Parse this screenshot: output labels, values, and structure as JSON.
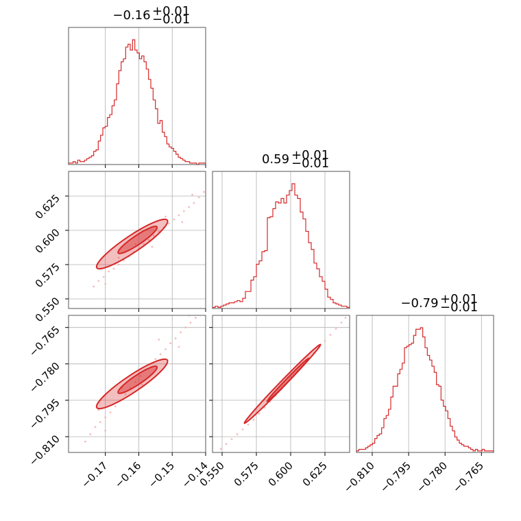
{
  "chart_data": {
    "type": "corner",
    "color": "#d62728",
    "light_color": "#f4b6b6",
    "grid": true,
    "parameters": [
      {
        "median": "−0.16",
        "plus": "+0.01",
        "minus": "−0.01",
        "range": [
          -0.181,
          -0.14
        ],
        "ticks": [
          -0.17,
          -0.16,
          -0.15,
          -0.14
        ],
        "tick_labels": [
          "−0.17",
          "−0.16",
          "−0.15",
          "−0.14"
        ]
      },
      {
        "median": "0.59",
        "plus": "+0.01",
        "minus": "−0.01",
        "range": [
          0.543,
          0.643
        ],
        "ticks": [
          0.55,
          0.575,
          0.6,
          0.625
        ],
        "tick_labels": [
          "0.550",
          "0.575",
          "0.600",
          "0.625"
        ]
      },
      {
        "median": "−0.79",
        "plus": "+0.01",
        "minus": "−0.01",
        "range": [
          -0.8165,
          -0.76
        ],
        "ticks": [
          -0.81,
          -0.795,
          -0.78,
          -0.765
        ],
        "tick_labels": [
          "−0.810",
          "−0.795",
          "−0.780",
          "−0.765"
        ]
      }
    ],
    "histograms": [
      {
        "param": 0,
        "edges": [
          -0.181,
          -0.14
        ],
        "counts": [
          1,
          1,
          2,
          1,
          3,
          2,
          2,
          3,
          4,
          5,
          6,
          9,
          10,
          16,
          20,
          25,
          26,
          32,
          34,
          40,
          44,
          55,
          64,
          70,
          72,
          80,
          82,
          78,
          85,
          78,
          76,
          72,
          74,
          70,
          65,
          58,
          52,
          44,
          38,
          28,
          30,
          22,
          19,
          14,
          12,
          11,
          9,
          7,
          5,
          4,
          3,
          2,
          2,
          1,
          1,
          1,
          0,
          1,
          1,
          1
        ]
      },
      {
        "param": 1,
        "edges": [
          0.543,
          0.643
        ],
        "counts": [
          1,
          2,
          1,
          2,
          3,
          4,
          5,
          5,
          6,
          7,
          6,
          9,
          15,
          15,
          25,
          28,
          39,
          42,
          50,
          51,
          80,
          81,
          88,
          94,
          93,
          97,
          93,
          100,
          104,
          110,
          100,
          97,
          85,
          79,
          68,
          58,
          52,
          40,
          35,
          28,
          24,
          17,
          10,
          8,
          5,
          4,
          3,
          2,
          2,
          1
        ]
      },
      {
        "param": 2,
        "edges": [
          -0.8165,
          -0.76
        ],
        "counts": [
          1,
          2,
          2,
          2,
          3,
          4,
          5,
          6,
          9,
          11,
          12,
          16,
          22,
          24,
          28,
          36,
          43,
          43,
          51,
          54,
          58,
          68,
          69,
          70,
          71,
          76,
          80,
          80,
          81,
          75,
          68,
          63,
          60,
          56,
          52,
          44,
          43,
          34,
          30,
          27,
          22,
          17,
          14,
          10,
          8,
          6,
          5,
          4,
          4,
          3,
          2,
          1,
          2,
          1,
          1,
          2,
          1,
          1,
          1,
          1
        ]
      }
    ],
    "pairs": [
      {
        "x_param": 0,
        "y_param": 1,
        "correlation": 0.97,
        "points": [
          [
            -0.1735,
            0.559
          ],
          [
            -0.172,
            0.563
          ],
          [
            -0.1705,
            0.566
          ],
          [
            -0.169,
            0.57
          ],
          [
            -0.1675,
            0.572
          ],
          [
            -0.166,
            0.575
          ],
          [
            -0.1645,
            0.578
          ],
          [
            -0.163,
            0.581
          ],
          [
            -0.1615,
            0.584
          ],
          [
            -0.16,
            0.587
          ],
          [
            -0.1585,
            0.59
          ],
          [
            -0.157,
            0.593
          ],
          [
            -0.1555,
            0.596
          ],
          [
            -0.154,
            0.599
          ],
          [
            -0.1525,
            0.602
          ],
          [
            -0.151,
            0.605
          ],
          [
            -0.1495,
            0.608
          ],
          [
            -0.148,
            0.611
          ],
          [
            -0.1465,
            0.614
          ],
          [
            -0.145,
            0.617
          ],
          [
            -0.1435,
            0.62
          ],
          [
            -0.142,
            0.624
          ],
          [
            -0.1405,
            0.628
          ],
          [
            -0.17,
            0.561
          ],
          [
            -0.166,
            0.58
          ],
          [
            -0.161,
            0.59
          ],
          [
            -0.156,
            0.588
          ],
          [
            -0.152,
            0.61
          ],
          [
            -0.147,
            0.606
          ],
          [
            -0.144,
            0.626
          ]
        ]
      },
      {
        "x_param": 0,
        "y_param": 2,
        "correlation": 0.96,
        "points": [
          [
            -0.176,
            -0.812
          ],
          [
            -0.1745,
            -0.809
          ],
          [
            -0.173,
            -0.806
          ],
          [
            -0.1715,
            -0.804
          ],
          [
            -0.17,
            -0.802
          ],
          [
            -0.1685,
            -0.8
          ],
          [
            -0.167,
            -0.7975
          ],
          [
            -0.1655,
            -0.795
          ],
          [
            -0.164,
            -0.7925
          ],
          [
            -0.1625,
            -0.79
          ],
          [
            -0.161,
            -0.7875
          ],
          [
            -0.1595,
            -0.785
          ],
          [
            -0.158,
            -0.7825
          ],
          [
            -0.1565,
            -0.78
          ],
          [
            -0.155,
            -0.778
          ],
          [
            -0.1535,
            -0.776
          ],
          [
            -0.152,
            -0.774
          ],
          [
            -0.1505,
            -0.7715
          ],
          [
            -0.149,
            -0.7695
          ],
          [
            -0.1475,
            -0.767
          ],
          [
            -0.146,
            -0.765
          ],
          [
            -0.1445,
            -0.763
          ],
          [
            -0.143,
            -0.761
          ],
          [
            -0.17,
            -0.8075
          ],
          [
            -0.165,
            -0.79
          ],
          [
            -0.159,
            -0.7885
          ],
          [
            -0.154,
            -0.77
          ],
          [
            -0.148,
            -0.773
          ],
          [
            -0.145,
            -0.76
          ],
          [
            -0.172,
            -0.799
          ]
        ]
      },
      {
        "x_param": 1,
        "y_param": 2,
        "correlation": 0.999,
        "points": [
          [
            0.549,
            -0.815
          ],
          [
            0.553,
            -0.813
          ],
          [
            0.557,
            -0.811
          ],
          [
            0.561,
            -0.809
          ],
          [
            0.565,
            -0.807
          ],
          [
            0.569,
            -0.805
          ],
          [
            0.573,
            -0.803
          ],
          [
            0.577,
            -0.8005
          ],
          [
            0.581,
            -0.798
          ],
          [
            0.585,
            -0.7955
          ],
          [
            0.589,
            -0.793
          ],
          [
            0.593,
            -0.7905
          ],
          [
            0.597,
            -0.788
          ],
          [
            0.601,
            -0.7855
          ],
          [
            0.605,
            -0.783
          ],
          [
            0.609,
            -0.7805
          ],
          [
            0.613,
            -0.778
          ],
          [
            0.617,
            -0.7755
          ],
          [
            0.621,
            -0.773
          ],
          [
            0.625,
            -0.7705
          ],
          [
            0.629,
            -0.768
          ],
          [
            0.633,
            -0.7655
          ],
          [
            0.637,
            -0.763
          ],
          [
            0.64,
            -0.761
          ]
        ]
      }
    ]
  }
}
